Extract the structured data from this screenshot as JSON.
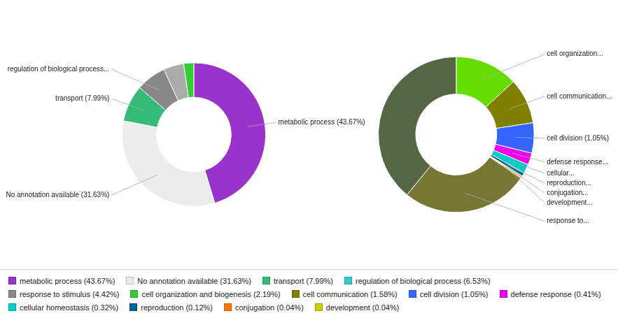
{
  "chart_data": [
    {
      "type": "doughnut",
      "values": [
        43.67,
        31.63,
        7.99,
        6.53,
        4.42,
        2.19
      ],
      "colors": [
        "#9933cc",
        "#ececec",
        "#33bb77",
        "#888888",
        "#aaaaaa",
        "#33cc33"
      ],
      "annotations": [
        {
          "index": 0,
          "text": "metabolic process (43.67%)"
        },
        {
          "index": 1,
          "text": "No annotation available (31.63%)"
        },
        {
          "index": 2,
          "text": "transport (7.99%)"
        },
        {
          "index": 3,
          "text": "regulation of biological process..."
        }
      ]
    },
    {
      "type": "doughnut",
      "values": [
        2.19,
        1.58,
        1.05,
        0.41,
        0.32,
        0.12,
        0.04,
        0.04,
        4.42,
        6.53
      ],
      "colors": [
        "#66dd00",
        "#808000",
        "#3366ff",
        "#ee00ee",
        "#00cccc",
        "#006688",
        "#ff7700",
        "#bbbb00",
        "#777733",
        "#556644"
      ],
      "annotations": [
        {
          "index": 0,
          "text": "cell organization..."
        },
        {
          "index": 1,
          "text": "cell communication..."
        },
        {
          "index": 2,
          "text": "cell division (1.05%)"
        },
        {
          "index": 3,
          "text": "defense response..."
        },
        {
          "index": 4,
          "text": "cellular..."
        },
        {
          "index": 5,
          "text": "reproduction..."
        },
        {
          "index": 6,
          "text": "conjugation..."
        },
        {
          "index": 7,
          "text": "development..."
        },
        {
          "index": 8,
          "text": "response to..."
        }
      ]
    }
  ],
  "legend_entries": [
    {
      "name": "metabolic process (43.67%)",
      "color": "#9933cc"
    },
    {
      "name": "No annotation available (31.63%)",
      "color": "#ececec"
    },
    {
      "name": "transport (7.99%)",
      "color": "#33bb77"
    },
    {
      "name": "regulation of biological process (6.53%)",
      "color": "#33cccc"
    },
    {
      "name": "response to stimulus (4.42%)",
      "color": "#888888"
    },
    {
      "name": "cell organization and biogenesis (2.19%)",
      "color": "#33cc33"
    },
    {
      "name": "cell communication (1.58%)",
      "color": "#808000"
    },
    {
      "name": "cell division (1.05%)",
      "color": "#3366ff"
    },
    {
      "name": "defense response (0.41%)",
      "color": "#ee00ee"
    },
    {
      "name": "cellular homeostasis (0.32%)",
      "color": "#00cccc"
    },
    {
      "name": "reproduction (0.12%)",
      "color": "#006699"
    },
    {
      "name": "conjugation (0.04%)",
      "color": "#ff7700"
    },
    {
      "name": "development (0.04%)",
      "color": "#cccc00"
    }
  ]
}
